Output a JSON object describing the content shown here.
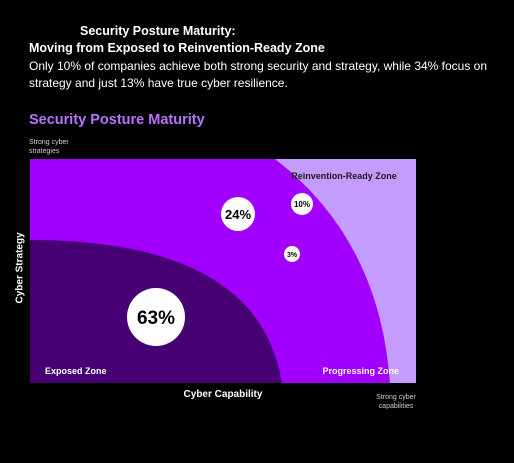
{
  "header": {
    "title": "Security Posture Maturity:",
    "subtitle": "Moving from Exposed to Reinvention-Ready Zone",
    "description": "Only 10% of companies achieve both strong security and strategy, while 34% focus on strategy and just 13% have true cyber resilience."
  },
  "diagram": {
    "heading": "Security Posture Maturity",
    "y_axis_label": "Cyber Strategy",
    "x_axis_label": "Cyber Capability",
    "y_top_note": "Strong cyber strategies",
    "x_end_note": "Strong cyber capabilities",
    "zones": {
      "reinvention": "Reinvention-Ready Zone",
      "exposed": "Exposed Zone",
      "progressing": "Progressing Zone"
    },
    "values": {
      "exposed": "63%",
      "progressing": "24%",
      "reinvention": "10%",
      "small": "3%"
    },
    "colors": {
      "background": "#000000",
      "heading": "#b872ff",
      "reinvention_zone": "#c49bff",
      "progressing_zone": "#a100ff",
      "exposed_zone": "#460073",
      "bubble": "#ffffff"
    }
  }
}
